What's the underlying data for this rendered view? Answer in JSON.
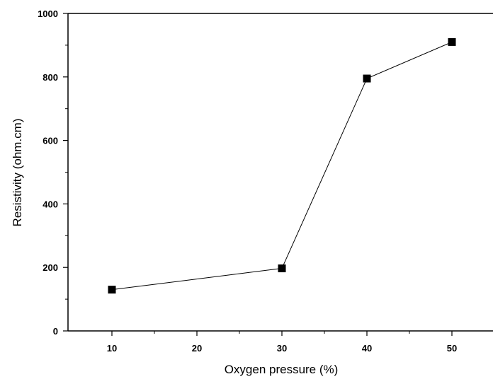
{
  "chart_data": {
    "type": "line",
    "title": "",
    "xlabel": "Oxygen pressure (%)",
    "ylabel": "Resistivity (ohm.cm)",
    "xlim": [
      5,
      55
    ],
    "ylim": [
      0,
      1000
    ],
    "x_ticks": [
      10,
      20,
      30,
      40,
      50
    ],
    "y_ticks": [
      0,
      200,
      400,
      600,
      800,
      1000
    ],
    "grid": false,
    "series": [
      {
        "x": [
          10,
          30,
          40,
          50
        ],
        "y": [
          130,
          197,
          795,
          910
        ],
        "marker": "square",
        "color": "#000000"
      }
    ]
  }
}
